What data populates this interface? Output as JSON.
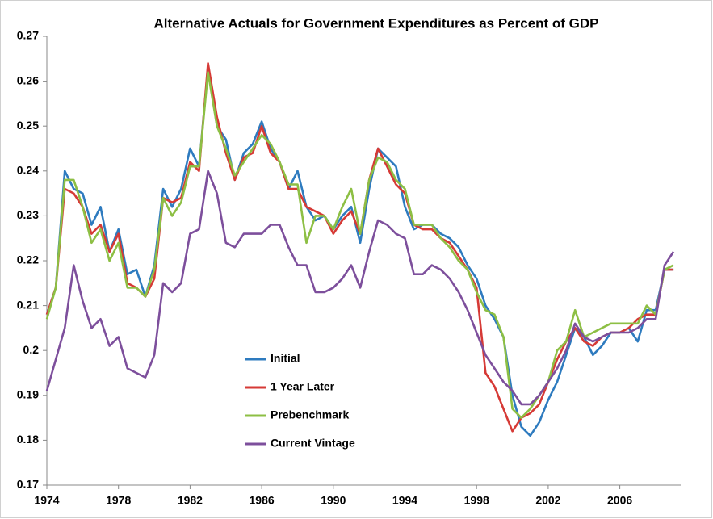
{
  "chart_data": {
    "type": "line",
    "title": "Alternative Actuals for Government Expenditures as Percent of GDP",
    "x": [
      1974,
      1974.5,
      1975,
      1975.5,
      1976,
      1976.5,
      1977,
      1977.5,
      1978,
      1978.5,
      1979,
      1979.5,
      1980,
      1980.5,
      1981,
      1981.5,
      1982,
      1982.5,
      1983,
      1983.5,
      1984,
      1984.5,
      1985,
      1985.5,
      1986,
      1986.5,
      1987,
      1987.5,
      1988,
      1988.5,
      1989,
      1989.5,
      1990,
      1990.5,
      1991,
      1991.5,
      1992,
      1992.5,
      1993,
      1993.5,
      1994,
      1994.5,
      1995,
      1995.5,
      1996,
      1996.5,
      1997,
      1997.5,
      1998,
      1998.5,
      1999,
      1999.5,
      2000,
      2000.5,
      2001,
      2001.5,
      2002,
      2002.5,
      2003,
      2003.5,
      2004,
      2004.5,
      2005,
      2005.5,
      2006,
      2006.5,
      2007,
      2007.5,
      2008,
      2008.5,
      2009
    ],
    "series": [
      {
        "name": "Initial",
        "color": "#2e7bbf",
        "values": [
          0.208,
          0.214,
          0.24,
          0.236,
          0.235,
          0.228,
          0.232,
          0.222,
          0.227,
          0.217,
          0.218,
          0.212,
          0.219,
          0.236,
          0.232,
          0.236,
          0.245,
          0.241,
          0.263,
          0.25,
          0.247,
          0.238,
          0.244,
          0.246,
          0.251,
          0.245,
          0.242,
          0.236,
          0.24,
          0.232,
          0.229,
          0.23,
          0.227,
          0.23,
          0.232,
          0.224,
          0.236,
          0.245,
          0.243,
          0.241,
          0.232,
          0.227,
          0.228,
          0.228,
          0.226,
          0.225,
          0.223,
          0.219,
          0.216,
          0.21,
          0.207,
          0.203,
          0.19,
          0.183,
          0.181,
          0.184,
          0.189,
          0.193,
          0.199,
          0.205,
          0.203,
          0.199,
          0.201,
          0.204,
          0.204,
          0.205,
          0.202,
          0.209,
          0.209,
          0.218,
          0.218
        ]
      },
      {
        "name": "1 Year Later",
        "color": "#d63a36",
        "values": [
          0.208,
          0.214,
          0.236,
          0.235,
          0.232,
          0.226,
          0.228,
          0.222,
          0.226,
          0.215,
          0.214,
          0.212,
          0.216,
          0.234,
          0.233,
          0.234,
          0.242,
          0.24,
          0.264,
          0.252,
          0.244,
          0.238,
          0.243,
          0.244,
          0.25,
          0.244,
          0.242,
          0.236,
          0.236,
          0.232,
          0.231,
          0.23,
          0.226,
          0.229,
          0.231,
          0.226,
          0.238,
          0.245,
          0.241,
          0.237,
          0.235,
          0.228,
          0.227,
          0.227,
          0.225,
          0.224,
          0.221,
          0.218,
          0.214,
          0.195,
          0.192,
          0.187,
          0.182,
          0.185,
          0.186,
          0.188,
          0.193,
          0.198,
          0.202,
          0.205,
          0.202,
          0.201,
          0.203,
          0.204,
          0.204,
          0.205,
          0.207,
          0.208,
          0.208,
          0.218,
          0.218
        ]
      },
      {
        "name": "Prebenchmark",
        "color": "#8dbf44",
        "values": [
          0.207,
          0.214,
          0.238,
          0.238,
          0.232,
          0.224,
          0.227,
          0.22,
          0.224,
          0.214,
          0.214,
          0.212,
          0.218,
          0.234,
          0.23,
          0.233,
          0.241,
          0.241,
          0.262,
          0.25,
          0.245,
          0.239,
          0.242,
          0.245,
          0.248,
          0.246,
          0.242,
          0.237,
          0.237,
          0.224,
          0.23,
          0.23,
          0.227,
          0.232,
          0.236,
          0.226,
          0.238,
          0.243,
          0.242,
          0.238,
          0.236,
          0.228,
          0.228,
          0.228,
          0.225,
          0.223,
          0.22,
          0.218,
          0.213,
          0.209,
          0.208,
          0.203,
          0.187,
          0.185,
          0.187,
          0.19,
          0.193,
          0.2,
          0.202,
          0.209,
          0.203,
          0.204,
          0.205,
          0.206,
          0.206,
          0.206,
          0.206,
          0.21,
          0.208,
          0.218,
          0.219
        ]
      },
      {
        "name": "Current Vintage",
        "color": "#7d4f9c",
        "values": [
          0.191,
          0.198,
          0.205,
          0.219,
          0.211,
          0.205,
          0.207,
          0.201,
          0.203,
          0.196,
          0.195,
          0.194,
          0.199,
          0.215,
          0.213,
          0.215,
          0.226,
          0.227,
          0.24,
          0.235,
          0.224,
          0.223,
          0.226,
          0.226,
          0.226,
          0.228,
          0.228,
          0.223,
          0.219,
          0.219,
          0.213,
          0.213,
          0.214,
          0.216,
          0.219,
          0.214,
          0.222,
          0.229,
          0.228,
          0.226,
          0.225,
          0.217,
          0.217,
          0.219,
          0.218,
          0.216,
          0.213,
          0.209,
          0.204,
          0.199,
          0.196,
          0.193,
          0.191,
          0.188,
          0.188,
          0.19,
          0.193,
          0.196,
          0.2,
          0.206,
          0.203,
          0.202,
          0.203,
          0.204,
          0.204,
          0.204,
          0.205,
          0.207,
          0.207,
          0.219,
          0.222
        ]
      }
    ],
    "xlim": [
      1974,
      2009.4
    ],
    "xticks": [
      1974,
      1978,
      1982,
      1986,
      1990,
      1994,
      1998,
      2002,
      2006
    ],
    "ylim": [
      0.17,
      0.27
    ],
    "yticks": [
      0.17,
      0.18,
      0.19,
      0.2,
      0.21,
      0.22,
      0.23,
      0.24,
      0.25,
      0.26,
      0.27
    ],
    "grid": false,
    "legend": "inside"
  }
}
